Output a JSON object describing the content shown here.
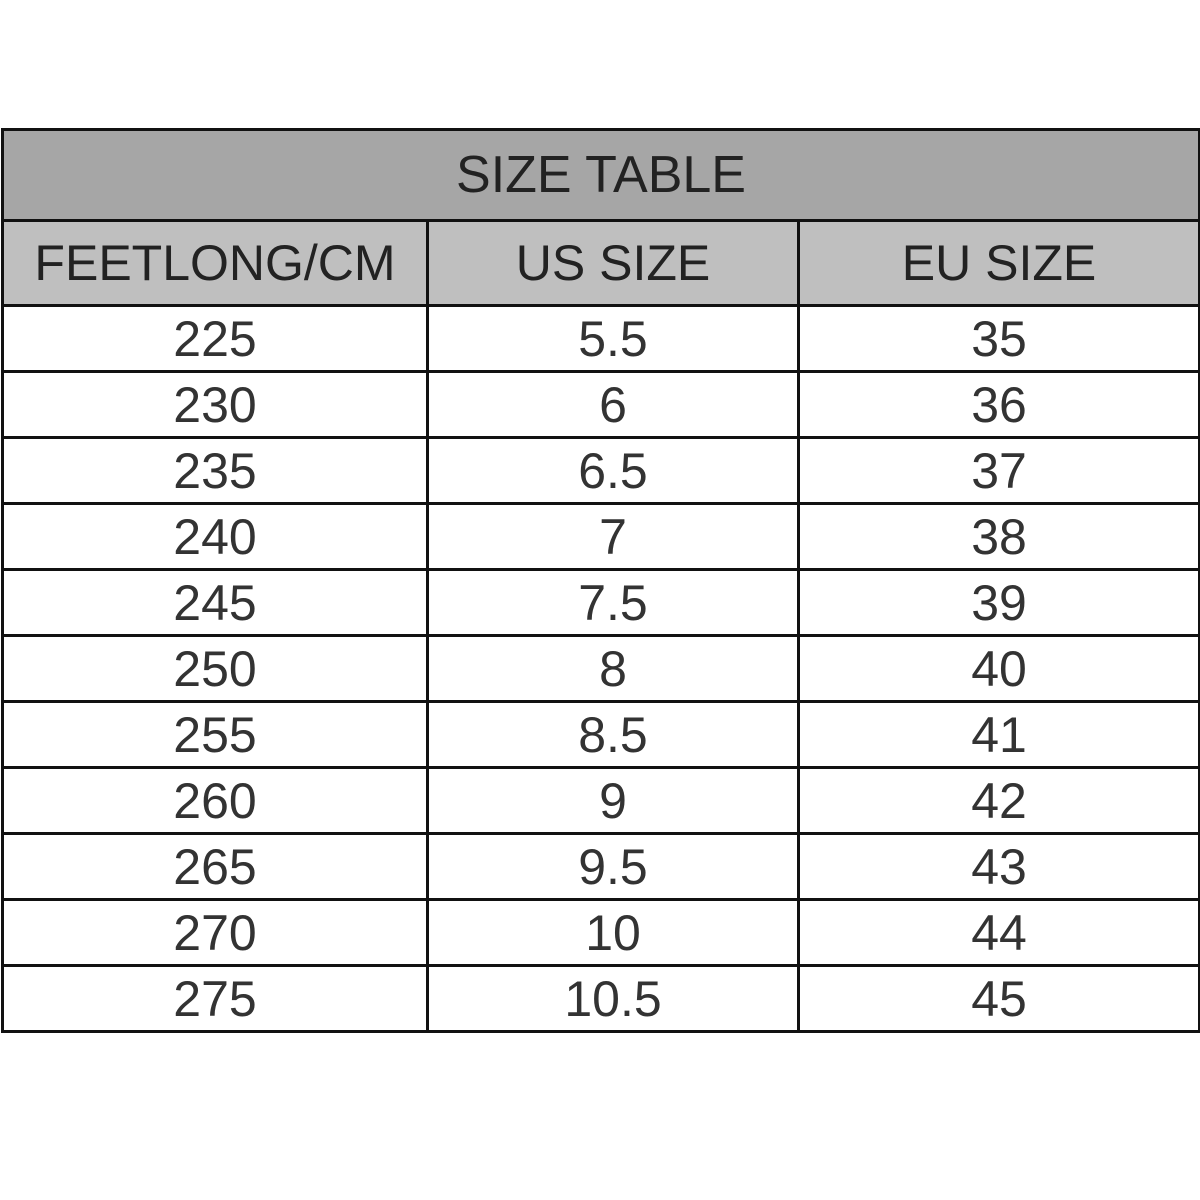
{
  "title": "SIZE TABLE",
  "columns": [
    "FEETLONG/CM",
    "US SIZE",
    "EU SIZE"
  ],
  "rows": [
    [
      "225",
      "5.5",
      "35"
    ],
    [
      "230",
      "6",
      "36"
    ],
    [
      "235",
      "6.5",
      "37"
    ],
    [
      "240",
      "7",
      "38"
    ],
    [
      "245",
      "7.5",
      "39"
    ],
    [
      "250",
      "8",
      "40"
    ],
    [
      "255",
      "8.5",
      "41"
    ],
    [
      "260",
      "9",
      "42"
    ],
    [
      "265",
      "9.5",
      "43"
    ],
    [
      "270",
      "10",
      "44"
    ],
    [
      "275",
      "10.5",
      "45"
    ]
  ],
  "colors": {
    "title_bg": "#a6a6a6",
    "header_bg": "#bfbfbf",
    "border": "#111111"
  }
}
